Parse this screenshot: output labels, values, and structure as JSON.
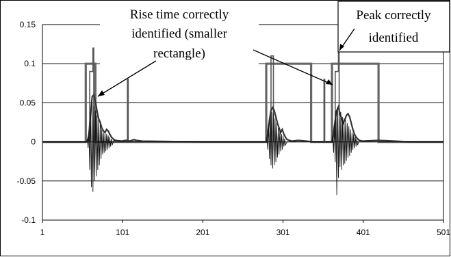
{
  "chart_data": {
    "type": "line",
    "xlim": [
      1,
      501
    ],
    "ylim": [
      -0.1,
      0.15
    ],
    "x_ticks": [
      "1",
      "101",
      "201",
      "301",
      "401",
      "501"
    ],
    "y_ticks": [
      "0.15",
      "0.1",
      "0.05",
      "0",
      "-0.05",
      "-0.1"
    ],
    "grid": "horizontal",
    "legend": "none",
    "series": [
      {
        "style": "thin",
        "points": [
          [
            1,
            0
          ],
          [
            56,
            0
          ],
          [
            57,
            0.004
          ],
          [
            58,
            -0.008
          ],
          [
            59,
            0.014
          ],
          [
            60,
            -0.036
          ],
          [
            61,
            0.038
          ],
          [
            62,
            -0.058
          ],
          [
            63,
            0.05
          ],
          [
            64,
            -0.064
          ],
          [
            65,
            0.046
          ],
          [
            66,
            -0.05
          ],
          [
            67,
            0.04
          ],
          [
            68,
            -0.044
          ],
          [
            69,
            0.034
          ],
          [
            70,
            -0.036
          ],
          [
            71,
            0.028
          ],
          [
            72,
            -0.03
          ],
          [
            73,
            0.022
          ],
          [
            74,
            -0.022
          ],
          [
            75,
            0.016
          ],
          [
            76,
            -0.016
          ],
          [
            77,
            0.012
          ],
          [
            78,
            -0.014
          ],
          [
            79,
            0.012
          ],
          [
            80,
            -0.012
          ],
          [
            81,
            0.01
          ],
          [
            82,
            -0.01
          ],
          [
            83,
            0.008
          ],
          [
            84,
            -0.008
          ],
          [
            85,
            0.006
          ],
          [
            86,
            -0.006
          ],
          [
            87,
            0.004
          ],
          [
            88,
            -0.004
          ],
          [
            90,
            0.002
          ],
          [
            95,
            0
          ],
          [
            280,
            0
          ],
          [
            281,
            0.006
          ],
          [
            282,
            -0.01
          ],
          [
            283,
            0.022
          ],
          [
            284,
            -0.022
          ],
          [
            285,
            0.032
          ],
          [
            286,
            -0.03
          ],
          [
            287,
            0.038
          ],
          [
            288,
            -0.034
          ],
          [
            289,
            0.036
          ],
          [
            290,
            -0.03
          ],
          [
            291,
            0.03
          ],
          [
            292,
            -0.026
          ],
          [
            293,
            0.024
          ],
          [
            294,
            -0.02
          ],
          [
            295,
            0.018
          ],
          [
            296,
            -0.016
          ],
          [
            297,
            0.014
          ],
          [
            298,
            -0.012
          ],
          [
            299,
            0.01
          ],
          [
            300,
            -0.01
          ],
          [
            301,
            0.008
          ],
          [
            302,
            -0.006
          ],
          [
            303,
            0.004
          ],
          [
            304,
            -0.004
          ],
          [
            306,
            0
          ],
          [
            362,
            0
          ],
          [
            363,
            0.008
          ],
          [
            364,
            -0.014
          ],
          [
            365,
            0.022
          ],
          [
            366,
            -0.026
          ],
          [
            367,
            0.04
          ],
          [
            368,
            -0.068
          ],
          [
            369,
            0.044
          ],
          [
            370,
            -0.046
          ],
          [
            371,
            0.03
          ],
          [
            372,
            -0.032
          ],
          [
            373,
            0.038
          ],
          [
            374,
            -0.036
          ],
          [
            375,
            0.032
          ],
          [
            376,
            -0.03
          ],
          [
            377,
            0.03
          ],
          [
            378,
            -0.028
          ],
          [
            379,
            0.028
          ],
          [
            380,
            -0.024
          ],
          [
            381,
            0.024
          ],
          [
            382,
            -0.02
          ],
          [
            383,
            0.02
          ],
          [
            384,
            -0.018
          ],
          [
            385,
            0.016
          ],
          [
            386,
            -0.014
          ],
          [
            387,
            0.012
          ],
          [
            388,
            -0.01
          ],
          [
            389,
            0.01
          ],
          [
            390,
            -0.008
          ],
          [
            391,
            0.006
          ],
          [
            392,
            -0.006
          ],
          [
            393,
            0.004
          ],
          [
            394,
            -0.004
          ],
          [
            396,
            0.002
          ],
          [
            400,
            0
          ],
          [
            501,
            0
          ]
        ]
      },
      {
        "style": "thick",
        "points": [
          [
            1,
            0
          ],
          [
            57,
            0
          ],
          [
            59,
            0.01
          ],
          [
            61,
            0.035
          ],
          [
            63,
            0.058
          ],
          [
            65,
            0.06
          ],
          [
            67,
            0.052
          ],
          [
            69,
            0.04
          ],
          [
            71,
            0.03
          ],
          [
            73,
            0.025
          ],
          [
            75,
            0.018
          ],
          [
            77,
            0.014
          ],
          [
            79,
            0.012
          ],
          [
            81,
            0.016
          ],
          [
            83,
            0.014
          ],
          [
            85,
            0.01
          ],
          [
            87,
            0.006
          ],
          [
            89,
            0.004
          ],
          [
            92,
            0.002
          ],
          [
            100,
            0.001
          ],
          [
            105,
            0.002
          ],
          [
            110,
            0.001
          ],
          [
            115,
            0.003
          ],
          [
            118,
            0.002
          ],
          [
            125,
            0.001
          ],
          [
            200,
            0
          ],
          [
            280,
            0
          ],
          [
            282,
            0.012
          ],
          [
            284,
            0.028
          ],
          [
            286,
            0.04
          ],
          [
            288,
            0.044
          ],
          [
            290,
            0.04
          ],
          [
            292,
            0.032
          ],
          [
            294,
            0.024
          ],
          [
            296,
            0.018
          ],
          [
            298,
            0.012
          ],
          [
            300,
            0.016
          ],
          [
            302,
            0.01
          ],
          [
            304,
            0.006
          ],
          [
            306,
            0.003
          ],
          [
            312,
            0.001
          ],
          [
            320,
            0.002
          ],
          [
            340,
            0
          ],
          [
            362,
            0
          ],
          [
            364,
            0.012
          ],
          [
            366,
            0.028
          ],
          [
            368,
            0.04
          ],
          [
            370,
            0.045
          ],
          [
            372,
            0.036
          ],
          [
            374,
            0.03
          ],
          [
            376,
            0.024
          ],
          [
            378,
            0.028
          ],
          [
            380,
            0.034
          ],
          [
            382,
            0.036
          ],
          [
            384,
            0.032
          ],
          [
            386,
            0.024
          ],
          [
            388,
            0.016
          ],
          [
            390,
            0.01
          ],
          [
            392,
            0.006
          ],
          [
            394,
            0.004
          ],
          [
            396,
            0.002
          ],
          [
            400,
            0.001
          ],
          [
            420,
            0.002
          ],
          [
            440,
            0.001
          ],
          [
            460,
            0
          ],
          [
            501,
            0
          ]
        ]
      },
      {
        "style": "grey",
        "points": [
          [
            1,
            0
          ],
          [
            55,
            0
          ],
          [
            55,
            0.1
          ],
          [
            67,
            0.1
          ],
          [
            67,
            0
          ],
          [
            280,
            0
          ],
          [
            280,
            0.1
          ],
          [
            336,
            0.1
          ],
          [
            336,
            0
          ],
          [
            362,
            0
          ],
          [
            362,
            0.1
          ],
          [
            420,
            0.1
          ],
          [
            420,
            0
          ],
          [
            501,
            0
          ]
        ]
      },
      {
        "style": "medium",
        "points": [
          [
            1,
            0
          ],
          [
            60,
            0
          ],
          [
            60,
            0.09
          ],
          [
            64,
            0.09
          ],
          [
            64,
            0.12
          ],
          [
            65,
            0.12
          ],
          [
            65,
            0
          ],
          [
            107,
            0
          ],
          [
            107,
            0.08
          ],
          [
            108,
            0.08
          ],
          [
            108,
            0
          ],
          [
            286,
            0
          ],
          [
            286,
            0.11
          ],
          [
            289,
            0.11
          ],
          [
            289,
            0
          ],
          [
            352,
            0
          ],
          [
            352,
            0.08
          ],
          [
            353,
            0.08
          ],
          [
            353,
            0
          ],
          [
            366,
            0
          ],
          [
            366,
            0.09
          ],
          [
            370,
            0.09
          ],
          [
            370,
            0.12
          ],
          [
            371,
            0.12
          ],
          [
            371,
            0
          ],
          [
            501,
            0
          ]
        ]
      }
    ],
    "annotations": [
      {
        "id": "rise",
        "lines": [
          "Rise time correctly",
          "identified (smaller",
          "rectangle)"
        ]
      },
      {
        "id": "peak",
        "lines": [
          "Peak correctly",
          "identified"
        ]
      }
    ]
  }
}
